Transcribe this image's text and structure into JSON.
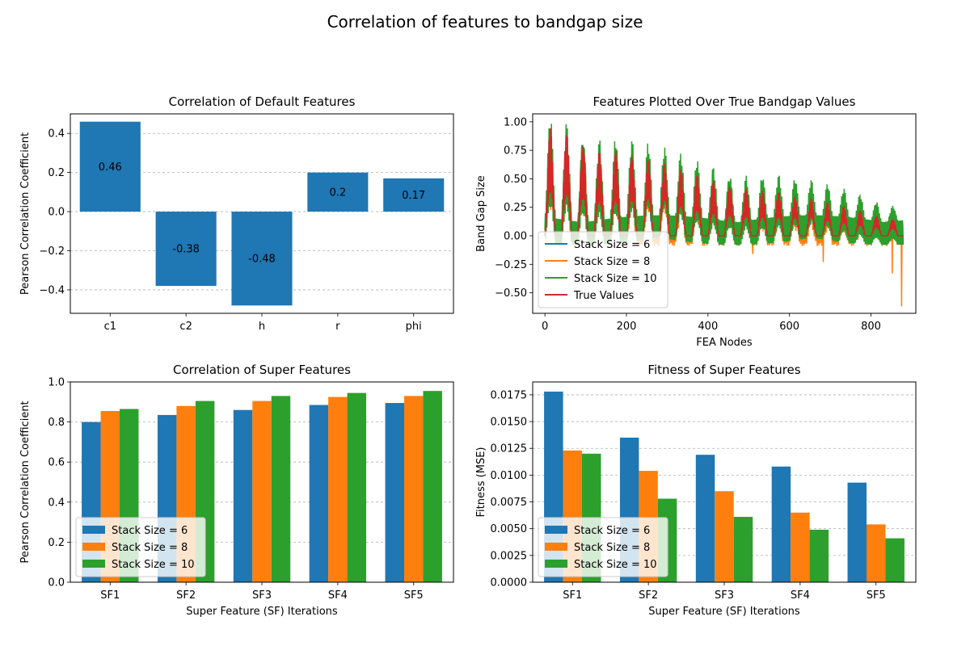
{
  "figure": {
    "title": "Correlation of features to bandgap size"
  },
  "colors": {
    "c6": "#1f77b4",
    "c8": "#ff7f0e",
    "c10": "#2ca02c",
    "true": "#d62728",
    "grid": "#b0b0b0"
  },
  "chart_data": [
    {
      "type": "bar",
      "title": "Correlation of Default Features",
      "xlabel": "",
      "ylabel": "Pearson Correlation Coefficient",
      "categories": [
        "c1",
        "c2",
        "h",
        "r",
        "phi"
      ],
      "values": [
        0.46,
        -0.38,
        -0.48,
        0.2,
        0.17
      ],
      "data_labels": [
        "0.46",
        "-0.38",
        "-0.48",
        "0.2",
        "0.17"
      ],
      "ylim": [
        -0.52,
        0.5
      ],
      "yticks": [
        -0.4,
        -0.2,
        0.0,
        0.2,
        0.4
      ],
      "ytick_labels": [
        "−0.4",
        "−0.2",
        "0.0",
        "0.2",
        "0.4"
      ],
      "grid": "y dashed"
    },
    {
      "type": "line",
      "title": "Features Plotted Over True Bandgap Values",
      "xlabel": "FEA Nodes",
      "ylabel": "Band Gap Size",
      "xlim": [
        -30,
        910
      ],
      "ylim": [
        -0.68,
        1.07
      ],
      "xticks": [
        0,
        200,
        400,
        600,
        800
      ],
      "xtick_labels": [
        "0",
        "200",
        "400",
        "600",
        "800"
      ],
      "yticks": [
        -0.5,
        -0.25,
        0.0,
        0.25,
        0.5,
        0.75,
        1.0
      ],
      "ytick_labels": [
        "−0.50",
        "−0.25",
        "0.00",
        "0.25",
        "0.50",
        "0.75",
        "1.00"
      ],
      "legend": "lower-left",
      "series": [
        {
          "name": "Stack Size = 6",
          "color_key": "c6"
        },
        {
          "name": "Stack Size = 8",
          "color_key": "c8"
        },
        {
          "name": "Stack Size = 10",
          "color_key": "c10"
        },
        {
          "name": "True Values",
          "color_key": "true"
        }
      ],
      "shape": {
        "n_nodes": 880,
        "group_count": 22,
        "group_peaks": [
          1.0,
          1.0,
          0.93,
          0.83,
          0.79,
          0.73,
          0.68,
          0.64,
          0.59,
          0.56,
          0.53,
          0.5,
          0.47,
          0.43,
          0.4,
          0.35,
          0.33,
          0.3,
          0.27,
          0.24,
          0.2,
          0.17
        ],
        "notable_minima": [
          {
            "series": "Stack Size = 8",
            "x": 875,
            "y": -0.62
          },
          {
            "series": "Stack Size = 8",
            "x": 852,
            "y": -0.33
          },
          {
            "series": "Stack Size = 8",
            "x": 683,
            "y": -0.23
          },
          {
            "series": "Stack Size = 8",
            "x": 510,
            "y": -0.16
          }
        ]
      }
    },
    {
      "type": "bar",
      "title": "Correlation of Super Features",
      "xlabel": "Super Feature (SF) Iterations",
      "ylabel": "Pearson Correlation Coefficient",
      "categories": [
        "SF1",
        "SF2",
        "SF3",
        "SF4",
        "SF5"
      ],
      "ylim": [
        0,
        1.0
      ],
      "yticks": [
        0.0,
        0.2,
        0.4,
        0.6,
        0.8,
        1.0
      ],
      "ytick_labels": [
        "0.0",
        "0.2",
        "0.4",
        "0.6",
        "0.8",
        "1.0"
      ],
      "grid": "y dashed",
      "legend": "lower-left",
      "series": [
        {
          "name": "Stack Size = 6",
          "color_key": "c6",
          "values": [
            0.8,
            0.835,
            0.86,
            0.885,
            0.895
          ]
        },
        {
          "name": "Stack Size = 8",
          "color_key": "c8",
          "values": [
            0.855,
            0.88,
            0.905,
            0.925,
            0.93
          ]
        },
        {
          "name": "Stack Size = 10",
          "color_key": "c10",
          "values": [
            0.865,
            0.905,
            0.93,
            0.945,
            0.955
          ]
        }
      ]
    },
    {
      "type": "bar",
      "title": "Fitness of Super Features",
      "xlabel": "Super Feature (SF) Iterations",
      "ylabel": "Fitness (MSE)",
      "categories": [
        "SF1",
        "SF2",
        "SF3",
        "SF4",
        "SF5"
      ],
      "ylim": [
        0,
        0.0187
      ],
      "yticks": [
        0.0,
        0.0025,
        0.005,
        0.0075,
        0.01,
        0.0125,
        0.015,
        0.0175
      ],
      "ytick_labels": [
        "0.0000",
        "0.0025",
        "0.0050",
        "0.0075",
        "0.0100",
        "0.0125",
        "0.0150",
        "0.0175"
      ],
      "grid": "y dashed",
      "legend": "lower-left",
      "series": [
        {
          "name": "Stack Size = 6",
          "color_key": "c6",
          "values": [
            0.0178,
            0.0135,
            0.0119,
            0.0108,
            0.0093
          ]
        },
        {
          "name": "Stack Size = 8",
          "color_key": "c8",
          "values": [
            0.0123,
            0.0104,
            0.0085,
            0.0065,
            0.0054
          ]
        },
        {
          "name": "Stack Size = 10",
          "color_key": "c10",
          "values": [
            0.012,
            0.0078,
            0.0061,
            0.0049,
            0.0041
          ]
        }
      ]
    }
  ]
}
